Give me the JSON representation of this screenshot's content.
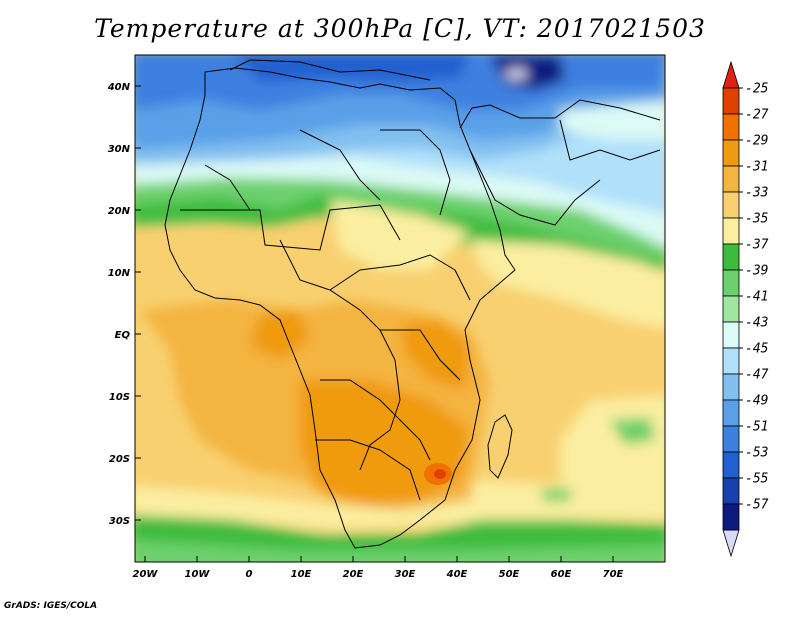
{
  "title": "Temperature at 300hPa [C], VT: 2017021503",
  "footer": "GrADS: IGES/COLA",
  "map": {
    "lat_labels": [
      "40N",
      "30N",
      "20N",
      "10N",
      "EQ",
      "10S",
      "20S",
      "30S"
    ],
    "lon_labels": [
      "20W",
      "10W",
      "0",
      "10E",
      "20E",
      "30E",
      "40E",
      "50E",
      "60E",
      "70E"
    ]
  },
  "colorbar": {
    "labels": [
      "-25",
      "-27",
      "-29",
      "-31",
      "-33",
      "-35",
      "-37",
      "-39",
      "-41",
      "-43",
      "-45",
      "-47",
      "-49",
      "-51",
      "-53",
      "-55",
      "-57"
    ],
    "colors": [
      "#e04000",
      "#f07000",
      "#f09a10",
      "#f4b440",
      "#f8d070",
      "#fbeea0",
      "#3cbc3c",
      "#6cd06c",
      "#a0e6a0",
      "#dcfaf6",
      "#b0e0fa",
      "#82c0f0",
      "#5aa0e8",
      "#3c80e0",
      "#2060d0",
      "#1840b0",
      "#0c1a80"
    ],
    "top_arrow_color": "#e02010",
    "bottom_arrow_color": "#d8d8f8"
  }
}
